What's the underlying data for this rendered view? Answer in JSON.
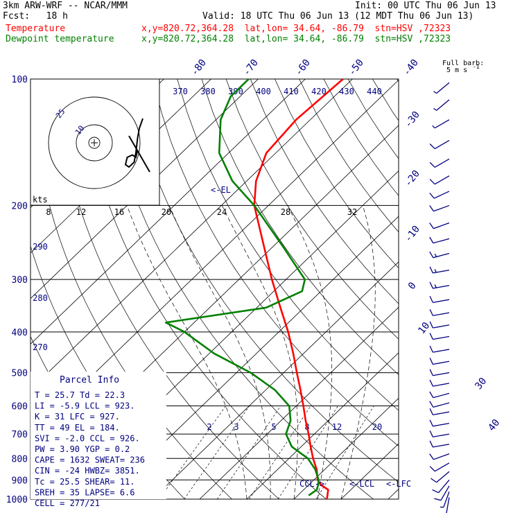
{
  "header": {
    "model_line": "3km ARW-WRF -- NCAR/MMM",
    "init_line": "Init: 00 UTC Thu 06 Jun 13",
    "fcst_line": "Fcst:   18 h",
    "valid_line": "Valid: 18 UTC Thu 06 Jun 13 (12 MDT Thu 06 Jun 13)",
    "temp_label": "Temperature",
    "temp_info": "x,y=820.72,364.28  lat,lon= 34.64, -86.79  stn=HSV ,72323",
    "dew_label": "Dewpoint temperature",
    "dew_info": "x,y=820.72,364.28  lat,lon= 34.64, -86.79  stn=HSV ,72323"
  },
  "colors": {
    "temperature": "#ff0000",
    "dewpoint": "#008000",
    "labels": "#000080",
    "isobar": "#000000"
  },
  "parcel_info": {
    "title": "Parcel Info",
    "rows": [
      "T   =   25.7  Td =  22.3",
      "LI  =   -5.9  LCL =  923.",
      "K   =     31  LFC =  927.",
      "TT  =     49  EL  =  184.",
      "SVI =   -2.0  CCL =  926.",
      "PW  =   3.90  YGP =   0.2",
      "CAPE =  1632  SWEAT=  236",
      "CIN  =   -24  HWBZ= 3851.",
      "Tc   =  25.5  SHEAR=  11.",
      "SREH =    35  LAPSE=  6.6",
      "CELL = 277/21"
    ]
  },
  "barb_key": {
    "title": "Full barb:",
    "value": "5 m s",
    "exp": "-1"
  },
  "hodograph": {
    "units": "kts",
    "ring_labels": [
      "25",
      "10"
    ]
  },
  "levels": {
    "el": "<-EL",
    "lcl": "<-LCL",
    "lfc": "<-LFC",
    "ccl": "CCL->"
  },
  "chart_data": {
    "type": "line",
    "title": "",
    "pressure_levels": [
      "100",
      "200",
      "300",
      "400",
      "500",
      "600",
      "700",
      "800",
      "900",
      "1000"
    ],
    "isotherm_labels": [
      "-80",
      "-70",
      "-60",
      "-50",
      "-40",
      "-30",
      "-20",
      "-10",
      "0",
      "10",
      "30",
      "40"
    ],
    "theta_labels": [
      "370",
      "380",
      "390",
      "400",
      "410",
      "420",
      "430",
      "440"
    ],
    "theta_side_labels": [
      "290",
      "280",
      "270"
    ],
    "mixing_ratio_labels": [
      "2",
      "3",
      "5",
      "8",
      "12",
      "20"
    ],
    "hodo_speed_labels": [
      "8",
      "12",
      "16",
      "20",
      "24",
      "28",
      "32"
    ],
    "series": [
      {
        "name": "Temperature",
        "points": [
          [
            1000,
            27.0
          ],
          [
            950,
            25.2
          ],
          [
            925,
            22.6
          ],
          [
            900,
            20.8
          ],
          [
            850,
            18.3
          ],
          [
            800,
            15.1
          ],
          [
            750,
            12.0
          ],
          [
            700,
            8.8
          ],
          [
            650,
            5.2
          ],
          [
            600,
            1.5
          ],
          [
            550,
            -2.6
          ],
          [
            500,
            -7.2
          ],
          [
            450,
            -12.2
          ],
          [
            400,
            -18.0
          ],
          [
            350,
            -25.0
          ],
          [
            300,
            -33.0
          ],
          [
            250,
            -42.0
          ],
          [
            200,
            -53.0
          ],
          [
            175,
            -58.0
          ],
          [
            150,
            -62.0
          ],
          [
            125,
            -63.0
          ],
          [
            100,
            -62.0
          ]
        ]
      },
      {
        "name": "Dewpoint temperature",
        "points": [
          [
            980,
            22.3
          ],
          [
            950,
            22.8
          ],
          [
            925,
            22.0
          ],
          [
            900,
            21.0
          ],
          [
            850,
            18.0
          ],
          [
            800,
            14.0
          ],
          [
            750,
            8.0
          ],
          [
            700,
            4.0
          ],
          [
            650,
            2.0
          ],
          [
            600,
            -1.5
          ],
          [
            550,
            -8.0
          ],
          [
            500,
            -17.0
          ],
          [
            450,
            -29.0
          ],
          [
            400,
            -40.0
          ],
          [
            380,
            -46.0
          ],
          [
            350,
            -28.0
          ],
          [
            320,
            -24.0
          ],
          [
            300,
            -26.0
          ],
          [
            250,
            -38.0
          ],
          [
            200,
            -53.0
          ],
          [
            175,
            -63.0
          ],
          [
            150,
            -72.0
          ],
          [
            125,
            -79.0
          ],
          [
            110,
            -82.0
          ],
          [
            100,
            -82.0
          ]
        ]
      }
    ],
    "wind_barbs": [
      {
        "p": 990,
        "dir": 190,
        "spd": 5
      },
      {
        "p": 960,
        "dir": 200,
        "spd": 8
      },
      {
        "p": 930,
        "dir": 210,
        "spd": 10
      },
      {
        "p": 900,
        "dir": 220,
        "spd": 10
      },
      {
        "p": 860,
        "dir": 230,
        "spd": 10
      },
      {
        "p": 820,
        "dir": 240,
        "spd": 10
      },
      {
        "p": 780,
        "dir": 250,
        "spd": 10
      },
      {
        "p": 740,
        "dir": 260,
        "spd": 10
      },
      {
        "p": 700,
        "dir": 260,
        "spd": 10
      },
      {
        "p": 660,
        "dir": 260,
        "spd": 10
      },
      {
        "p": 620,
        "dir": 260,
        "spd": 10
      },
      {
        "p": 590,
        "dir": 255,
        "spd": 10
      },
      {
        "p": 560,
        "dir": 255,
        "spd": 10
      },
      {
        "p": 530,
        "dir": 260,
        "spd": 10
      },
      {
        "p": 500,
        "dir": 260,
        "spd": 10
      },
      {
        "p": 470,
        "dir": 260,
        "spd": 10
      },
      {
        "p": 440,
        "dir": 260,
        "spd": 10
      },
      {
        "p": 410,
        "dir": 260,
        "spd": 10
      },
      {
        "p": 385,
        "dir": 260,
        "spd": 10
      },
      {
        "p": 360,
        "dir": 260,
        "spd": 10
      },
      {
        "p": 335,
        "dir": 260,
        "spd": 10
      },
      {
        "p": 310,
        "dir": 260,
        "spd": 15
      },
      {
        "p": 285,
        "dir": 260,
        "spd": 15
      },
      {
        "p": 260,
        "dir": 255,
        "spd": 15
      },
      {
        "p": 240,
        "dir": 255,
        "spd": 10
      },
      {
        "p": 220,
        "dir": 250,
        "spd": 10
      },
      {
        "p": 200,
        "dir": 250,
        "spd": 10
      },
      {
        "p": 185,
        "dir": 245,
        "spd": 10
      },
      {
        "p": 170,
        "dir": 240,
        "spd": 10
      },
      {
        "p": 155,
        "dir": 240,
        "spd": 10
      },
      {
        "p": 140,
        "dir": 240,
        "spd": 10
      },
      {
        "p": 125,
        "dir": 240,
        "spd": 5
      },
      {
        "p": 112,
        "dir": 230,
        "spd": 5
      },
      {
        "p": 102,
        "dir": 230,
        "spd": 5
      }
    ],
    "hodograph_points": [
      [
        6,
        -10
      ],
      [
        5,
        -8
      ],
      [
        4,
        -6
      ],
      [
        3,
        -2
      ],
      [
        2,
        4
      ],
      [
        1,
        8
      ],
      [
        -2,
        10
      ],
      [
        -4,
        9
      ],
      [
        -3,
        6
      ],
      [
        0,
        5
      ],
      [
        2,
        6
      ],
      [
        3,
        3
      ]
    ],
    "axis": {
      "p_top": 100,
      "p_bottom": 1000,
      "y_scale": "log"
    }
  }
}
